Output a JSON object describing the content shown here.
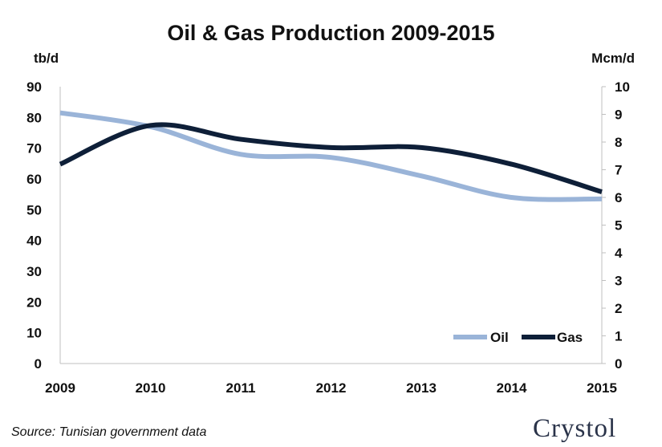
{
  "chart_data": {
    "type": "line",
    "title": "Oil & Gas Production 2009-2015",
    "y_left_label": "tb/d",
    "y_right_label": "Mcm/d",
    "categories": [
      "2009",
      "2010",
      "2011",
      "2012",
      "2013",
      "2014",
      "2015"
    ],
    "y_left_ticks": [
      "0",
      "10",
      "20",
      "30",
      "40",
      "50",
      "60",
      "70",
      "80",
      "90"
    ],
    "y_right_ticks": [
      "0",
      "1",
      "2",
      "3",
      "4",
      "5",
      "6",
      "7",
      "8",
      "9",
      "10"
    ],
    "y_left_range": [
      0,
      90
    ],
    "y_right_range": [
      0,
      10
    ],
    "grid": false,
    "legend_position": "bottom-right",
    "series": [
      {
        "name": "Oil",
        "axis": "left",
        "color": "#9ab4d8",
        "values": [
          81.5,
          77,
          68,
          67,
          61,
          54,
          53.5
        ]
      },
      {
        "name": "Gas",
        "axis": "right",
        "color": "#0e1f38",
        "values": [
          7.2,
          8.6,
          8.1,
          7.8,
          7.8,
          7.2,
          6.2
        ]
      }
    ]
  },
  "source": "Source: Tunisian government data",
  "logo": "Crystol"
}
